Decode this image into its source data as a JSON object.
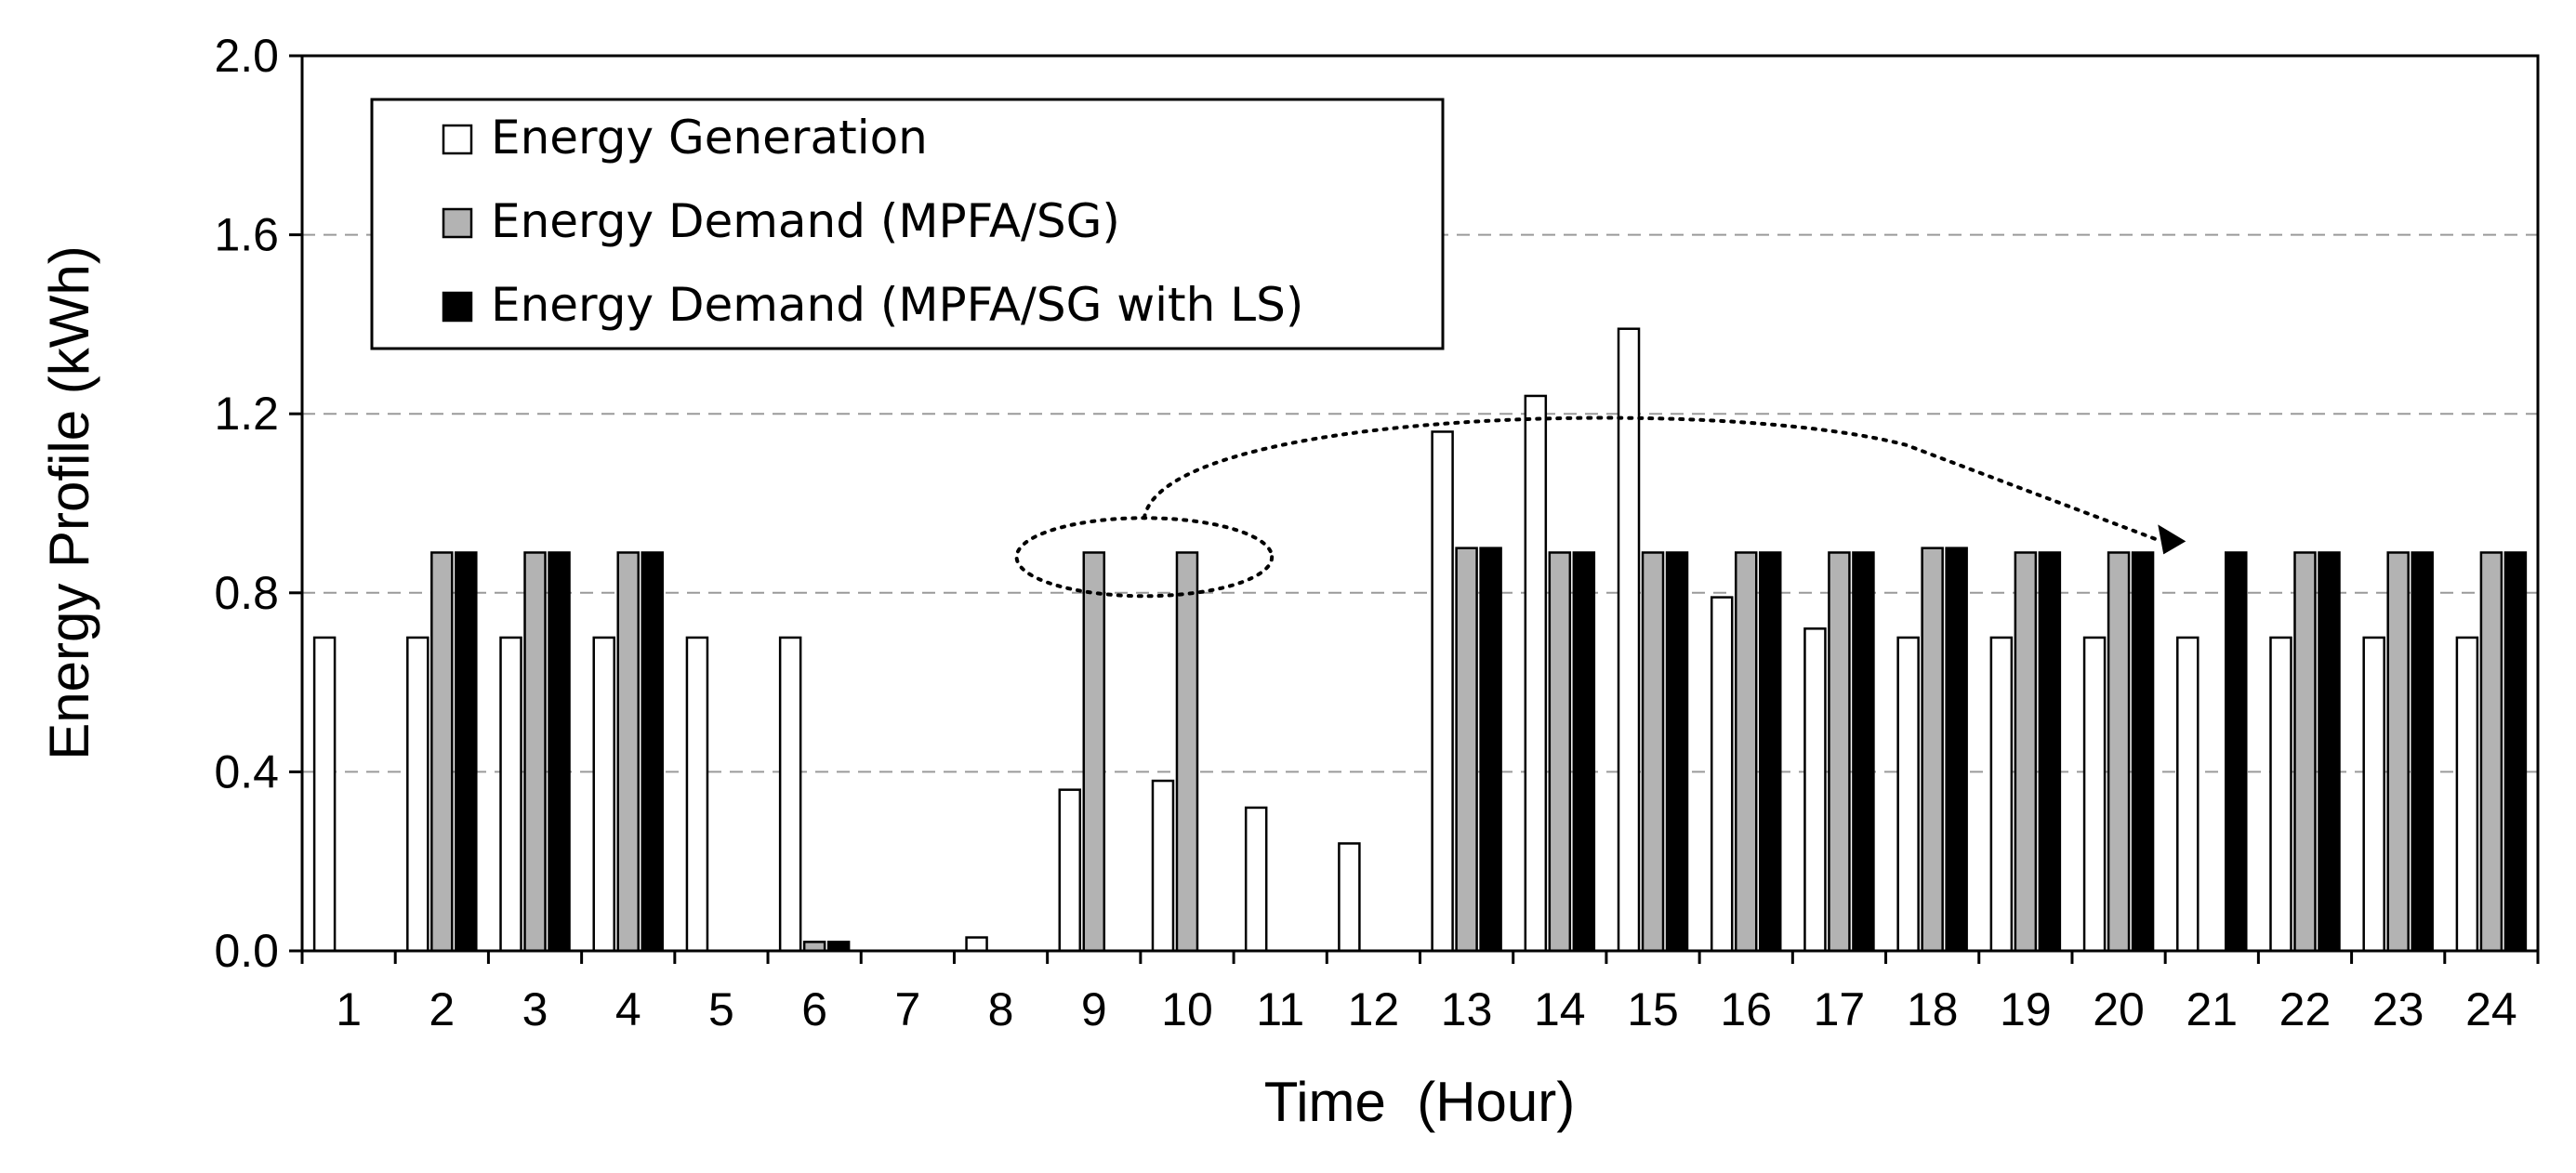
{
  "chart_data": {
    "type": "bar",
    "title": "",
    "xlabel": "Time  (Hour)",
    "ylabel": "Energy  Profile (kWh)",
    "ylim": [
      0,
      2.0
    ],
    "yticks": [
      "0.0",
      "0.4",
      "0.8",
      "1.2",
      "1.6",
      "2.0"
    ],
    "grid": "horizontal-dashed",
    "legend_position": "top-left",
    "categories": [
      "1",
      "2",
      "3",
      "4",
      "5",
      "6",
      "7",
      "8",
      "9",
      "10",
      "11",
      "12",
      "13",
      "14",
      "15",
      "16",
      "17",
      "18",
      "19",
      "20",
      "21",
      "22",
      "23",
      "24"
    ],
    "series": [
      {
        "name": "Energy Generation",
        "color": "#ffffff",
        "values": [
          0.7,
          0.7,
          0.7,
          0.7,
          0.7,
          0.7,
          0,
          0.03,
          0.36,
          0.38,
          0.32,
          0.24,
          1.16,
          1.24,
          1.39,
          0.79,
          0.72,
          0.7,
          0.7,
          0.7,
          0.7,
          0.7,
          0.7,
          0.7
        ]
      },
      {
        "name": "Energy Demand (MPFA/SG)",
        "color": "#b3b3b3",
        "values": [
          0,
          0.89,
          0.89,
          0.89,
          0,
          0.02,
          0,
          0,
          0.89,
          0.89,
          0,
          0,
          0.9,
          0.89,
          0.89,
          0.89,
          0.89,
          0.9,
          0.89,
          0.89,
          0,
          0.89,
          0.89,
          0.89
        ]
      },
      {
        "name": "Energy Demand (MPFA/SG with LS)",
        "color": "#000000",
        "values": [
          0,
          0.89,
          0.89,
          0.89,
          0,
          0.02,
          0,
          0,
          0,
          0,
          0,
          0,
          0.9,
          0.89,
          0.89,
          0.89,
          0.89,
          0.9,
          0.89,
          0.89,
          0.89,
          0.89,
          0.89,
          0.89
        ]
      }
    ],
    "annotations": [
      {
        "type": "dotted-ellipse",
        "around_categories": [
          "9",
          "10"
        ],
        "at_value": 0.88
      },
      {
        "type": "dotted-arrow",
        "from_category": "9",
        "to_category": "21",
        "note": "load shifted from hours 9-10 to hour 21"
      }
    ]
  }
}
